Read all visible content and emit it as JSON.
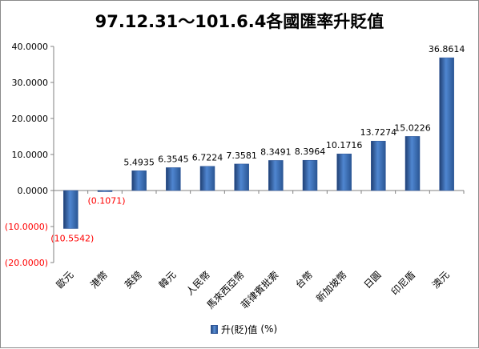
{
  "title": "97.12.31～101.6.4各國匯率升貶值",
  "chart_data": {
    "type": "bar",
    "title": "97.12.31～101.6.4各國匯率升貶值",
    "categories": [
      "歐元",
      "港幣",
      "英鎊",
      "韓元",
      "人民幣",
      "馬來西亞幣",
      "菲律賓批索",
      "台幣",
      "新加坡幣",
      "日圓",
      "印尼盾",
      "澳元"
    ],
    "series": [
      {
        "name": "升(貶)值",
        "values": [
          -10.5542,
          -0.1071,
          5.4935,
          6.3545,
          6.7224,
          7.3581,
          8.3491,
          8.3964,
          10.1716,
          13.7274,
          15.0226,
          36.8614
        ]
      }
    ],
    "data_labels": [
      "(10.5542)",
      "(0.1071)",
      "5.4935",
      "6.3545",
      "6.7224",
      "7.3581",
      "8.3491",
      "8.3964",
      "10.1716",
      "13.7274",
      "15.0226",
      "36.8614"
    ],
    "y_ticks": [
      40,
      30,
      20,
      10,
      0,
      -10,
      -20
    ],
    "y_tick_labels": [
      "40.0000",
      "30.0000",
      "20.0000",
      "10.0000",
      "0.0000",
      "(10.0000)",
      "(20.0000)"
    ],
    "ylim": [
      -20,
      40
    ],
    "grid": false,
    "legend_position": "bottom",
    "legend_label": "升(貶)值",
    "legend_unit": "(%)",
    "bar_color": "#3a6fb8",
    "negative_label_color": "#ff0000"
  }
}
